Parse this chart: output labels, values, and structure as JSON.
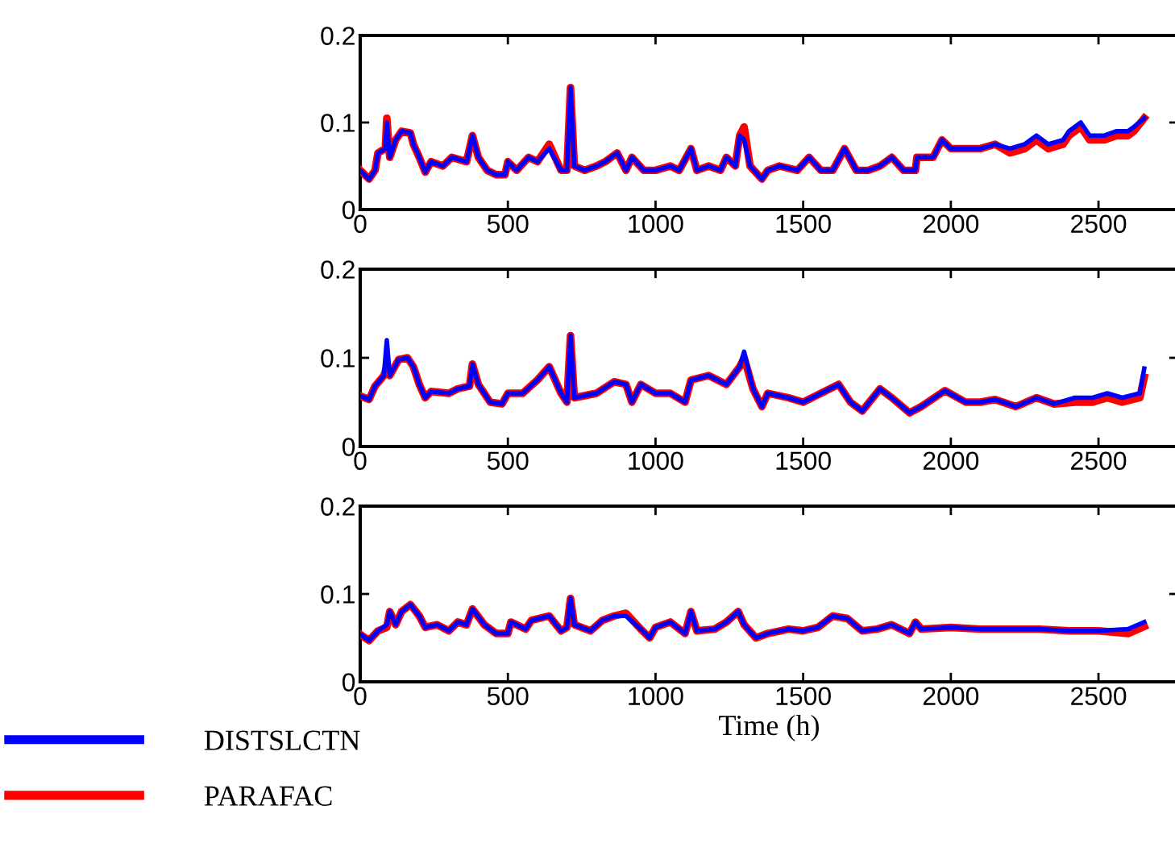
{
  "chart_data": [
    {
      "type": "line",
      "xlim": [
        0,
        2770
      ],
      "xticks": [
        0,
        500,
        1000,
        1500,
        2000,
        2500
      ],
      "ylim": [
        0,
        0.2
      ],
      "yticks": [
        0,
        0.1,
        0.2
      ],
      "grid": false,
      "legend": false,
      "x": [
        0,
        30,
        50,
        60,
        85,
        90,
        100,
        120,
        140,
        170,
        180,
        200,
        220,
        240,
        280,
        310,
        360,
        380,
        400,
        430,
        460,
        490,
        500,
        530,
        570,
        600,
        640,
        680,
        700,
        712,
        725,
        760,
        800,
        830,
        870,
        900,
        920,
        960,
        1000,
        1050,
        1080,
        1120,
        1140,
        1180,
        1220,
        1240,
        1270,
        1285,
        1300,
        1320,
        1360,
        1380,
        1420,
        1480,
        1520,
        1560,
        1600,
        1640,
        1680,
        1720,
        1760,
        1800,
        1840,
        1880,
        1885,
        1940,
        1970,
        2000,
        2050,
        2100,
        2150,
        2200,
        2250,
        2290,
        2330,
        2380,
        2400,
        2440,
        2470,
        2520,
        2560,
        2600,
        2620,
        2655
      ],
      "series": [
        {
          "color": "#0000ff",
          "values": [
            0.045,
            0.035,
            0.045,
            0.065,
            0.07,
            0.1,
            0.06,
            0.08,
            0.09,
            0.088,
            0.075,
            0.06,
            0.043,
            0.055,
            0.05,
            0.06,
            0.055,
            0.085,
            0.06,
            0.045,
            0.04,
            0.04,
            0.055,
            0.045,
            0.06,
            0.055,
            0.07,
            0.045,
            0.045,
            0.14,
            0.05,
            0.045,
            0.05,
            0.055,
            0.065,
            0.045,
            0.06,
            0.045,
            0.045,
            0.05,
            0.045,
            0.07,
            0.045,
            0.05,
            0.045,
            0.06,
            0.05,
            0.085,
            0.08,
            0.05,
            0.035,
            0.045,
            0.05,
            0.045,
            0.06,
            0.045,
            0.045,
            0.07,
            0.045,
            0.045,
            0.05,
            0.06,
            0.045,
            0.045,
            0.06,
            0.06,
            0.08,
            0.07,
            0.07,
            0.07,
            0.075,
            0.07,
            0.075,
            0.085,
            0.075,
            0.08,
            0.09,
            0.1,
            0.085,
            0.085,
            0.09,
            0.09,
            0.095,
            0.105
          ]
        },
        {
          "color": "#ff0000",
          "values": [
            0.045,
            0.035,
            0.045,
            0.065,
            0.07,
            0.105,
            0.06,
            0.08,
            0.09,
            0.088,
            0.075,
            0.06,
            0.043,
            0.055,
            0.05,
            0.06,
            0.055,
            0.085,
            0.06,
            0.045,
            0.04,
            0.04,
            0.055,
            0.045,
            0.06,
            0.055,
            0.075,
            0.045,
            0.045,
            0.14,
            0.05,
            0.045,
            0.05,
            0.055,
            0.065,
            0.045,
            0.06,
            0.045,
            0.045,
            0.05,
            0.045,
            0.07,
            0.045,
            0.05,
            0.045,
            0.06,
            0.05,
            0.085,
            0.095,
            0.05,
            0.035,
            0.045,
            0.05,
            0.045,
            0.06,
            0.045,
            0.045,
            0.07,
            0.045,
            0.045,
            0.05,
            0.06,
            0.045,
            0.045,
            0.06,
            0.06,
            0.08,
            0.07,
            0.07,
            0.07,
            0.075,
            0.065,
            0.07,
            0.08,
            0.07,
            0.075,
            0.085,
            0.095,
            0.08,
            0.08,
            0.085,
            0.085,
            0.09,
            0.105
          ]
        }
      ]
    },
    {
      "type": "line",
      "xlim": [
        0,
        2770
      ],
      "xticks": [
        0,
        500,
        1000,
        1500,
        2000,
        2500
      ],
      "ylim": [
        0,
        0.2
      ],
      "yticks": [
        0,
        0.1,
        0.2
      ],
      "grid": false,
      "legend": false,
      "x": [
        0,
        30,
        50,
        80,
        90,
        100,
        130,
        160,
        180,
        200,
        220,
        240,
        300,
        330,
        370,
        380,
        400,
        440,
        480,
        500,
        550,
        600,
        640,
        680,
        700,
        712,
        725,
        800,
        860,
        900,
        920,
        950,
        1000,
        1050,
        1100,
        1120,
        1180,
        1240,
        1285,
        1300,
        1330,
        1360,
        1380,
        1450,
        1500,
        1560,
        1620,
        1660,
        1700,
        1760,
        1800,
        1860,
        1900,
        1980,
        2050,
        2100,
        2150,
        2220,
        2290,
        2350,
        2420,
        2480,
        2530,
        2580,
        2640,
        2655
      ],
      "series": [
        {
          "color": "#0000ff",
          "values": [
            0.057,
            0.053,
            0.068,
            0.08,
            0.12,
            0.08,
            0.098,
            0.1,
            0.09,
            0.07,
            0.055,
            0.062,
            0.06,
            0.065,
            0.068,
            0.093,
            0.07,
            0.05,
            0.048,
            0.06,
            0.06,
            0.075,
            0.09,
            0.06,
            0.05,
            0.125,
            0.055,
            0.06,
            0.073,
            0.07,
            0.05,
            0.07,
            0.06,
            0.06,
            0.05,
            0.075,
            0.08,
            0.07,
            0.09,
            0.107,
            0.065,
            0.045,
            0.06,
            0.055,
            0.05,
            0.06,
            0.07,
            0.05,
            0.04,
            0.065,
            0.055,
            0.038,
            0.045,
            0.063,
            0.05,
            0.05,
            0.053,
            0.045,
            0.055,
            0.048,
            0.055,
            0.055,
            0.06,
            0.055,
            0.06,
            0.088
          ]
        },
        {
          "color": "#ff0000",
          "values": [
            0.057,
            0.053,
            0.068,
            0.08,
            0.09,
            0.08,
            0.098,
            0.1,
            0.09,
            0.07,
            0.055,
            0.062,
            0.06,
            0.065,
            0.068,
            0.093,
            0.07,
            0.05,
            0.048,
            0.06,
            0.06,
            0.075,
            0.09,
            0.06,
            0.05,
            0.125,
            0.055,
            0.06,
            0.073,
            0.07,
            0.05,
            0.07,
            0.06,
            0.06,
            0.05,
            0.075,
            0.08,
            0.07,
            0.09,
            0.1,
            0.065,
            0.045,
            0.06,
            0.055,
            0.05,
            0.06,
            0.07,
            0.05,
            0.04,
            0.065,
            0.055,
            0.038,
            0.045,
            0.063,
            0.05,
            0.05,
            0.053,
            0.045,
            0.055,
            0.048,
            0.05,
            0.05,
            0.055,
            0.05,
            0.055,
            0.078
          ]
        }
      ]
    },
    {
      "type": "line",
      "xlim": [
        0,
        2770
      ],
      "xticks": [
        0,
        500,
        1000,
        1500,
        2000,
        2500
      ],
      "ylim": [
        0,
        0.2
      ],
      "yticks": [
        0,
        0.1,
        0.2
      ],
      "grid": false,
      "legend": "bottom left",
      "xlabel": "Time (h)",
      "x": [
        0,
        30,
        60,
        90,
        100,
        120,
        140,
        170,
        200,
        220,
        260,
        300,
        330,
        360,
        380,
        420,
        460,
        500,
        510,
        560,
        580,
        640,
        680,
        700,
        712,
        725,
        780,
        820,
        860,
        900,
        950,
        980,
        1000,
        1050,
        1100,
        1120,
        1140,
        1200,
        1240,
        1280,
        1300,
        1340,
        1380,
        1450,
        1500,
        1550,
        1600,
        1650,
        1700,
        1750,
        1800,
        1860,
        1880,
        1900,
        2000,
        2100,
        2200,
        2300,
        2400,
        2500,
        2600,
        2655
      ],
      "series": [
        {
          "name": "DISTSLCTN",
          "color": "#0000ff",
          "values": [
            0.054,
            0.047,
            0.058,
            0.065,
            0.08,
            0.065,
            0.08,
            0.088,
            0.075,
            0.062,
            0.065,
            0.058,
            0.068,
            0.065,
            0.083,
            0.065,
            0.055,
            0.055,
            0.068,
            0.06,
            0.07,
            0.075,
            0.058,
            0.062,
            0.095,
            0.065,
            0.058,
            0.07,
            0.075,
            0.075,
            0.06,
            0.05,
            0.062,
            0.068,
            0.055,
            0.08,
            0.058,
            0.06,
            0.068,
            0.08,
            0.065,
            0.05,
            0.055,
            0.06,
            0.058,
            0.062,
            0.075,
            0.072,
            0.058,
            0.06,
            0.065,
            0.055,
            0.068,
            0.06,
            0.062,
            0.06,
            0.06,
            0.06,
            0.058,
            0.058,
            0.06,
            0.068
          ]
        },
        {
          "name": "PARAFAC",
          "color": "#ff0000",
          "values": [
            0.054,
            0.047,
            0.058,
            0.062,
            0.08,
            0.065,
            0.08,
            0.088,
            0.075,
            0.062,
            0.065,
            0.058,
            0.068,
            0.065,
            0.083,
            0.065,
            0.055,
            0.055,
            0.068,
            0.06,
            0.07,
            0.075,
            0.058,
            0.062,
            0.095,
            0.065,
            0.058,
            0.07,
            0.075,
            0.078,
            0.06,
            0.05,
            0.062,
            0.068,
            0.055,
            0.08,
            0.058,
            0.06,
            0.068,
            0.08,
            0.065,
            0.05,
            0.055,
            0.06,
            0.058,
            0.062,
            0.075,
            0.072,
            0.058,
            0.06,
            0.065,
            0.055,
            0.068,
            0.06,
            0.062,
            0.06,
            0.06,
            0.06,
            0.058,
            0.058,
            0.055,
            0.063
          ]
        }
      ]
    }
  ]
}
